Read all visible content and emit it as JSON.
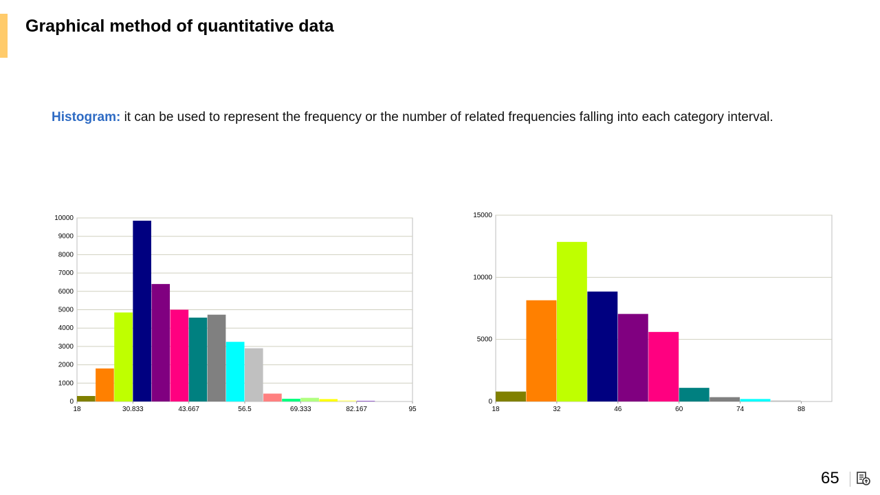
{
  "slide": {
    "title": "Graphical method of quantitative data",
    "term": "Histogram:",
    "description": " it can be used to represent the frequency or the number of related frequencies falling into each category interval.",
    "page_number": "65",
    "accent_color": "#FFCB6B",
    "term_color": "#2E6BC4",
    "footer_icon": "notes-icon"
  },
  "chart_data": [
    {
      "type": "bar",
      "title": "",
      "xlabel": "",
      "ylabel": "",
      "x_ticks": [
        "18",
        "30.833",
        "43.667",
        "56.5",
        "69.333",
        "82.167",
        "95"
      ],
      "y_ticks": [
        "0",
        "1000",
        "2000",
        "3000",
        "4000",
        "5000",
        "6000",
        "7000",
        "8000",
        "9000",
        "10000"
      ],
      "ylim": [
        0,
        10000
      ],
      "xlim": [
        18,
        95
      ],
      "bin_start": 18,
      "bin_width": 4.2778,
      "values": [
        300,
        1800,
        4850,
        9850,
        6400,
        5000,
        4570,
        4730,
        3250,
        2900,
        430,
        150,
        200,
        130,
        60,
        40,
        0,
        0
      ],
      "colors": [
        "#808000",
        "#FF8000",
        "#BFFF00",
        "#000080",
        "#800080",
        "#FF0080",
        "#008080",
        "#808080",
        "#00FFFF",
        "#C0C0C0",
        "#FF8080",
        "#00FF80",
        "#B0FF80",
        "#FFFF00",
        "#FFFF80",
        "#9966CC",
        "#CCCCCC",
        "#CCCCCC"
      ],
      "grid": true
    },
    {
      "type": "bar",
      "title": "",
      "xlabel": "",
      "ylabel": "",
      "x_ticks": [
        "18",
        "32",
        "46",
        "60",
        "74",
        "88"
      ],
      "y_ticks": [
        "0",
        "5000",
        "10000",
        "15000"
      ],
      "ylim": [
        0,
        15000
      ],
      "xlim": [
        18,
        95
      ],
      "bin_start": 18,
      "bin_width": 7,
      "values": [
        800,
        8150,
        12850,
        8850,
        7050,
        5600,
        1100,
        350,
        200,
        80,
        0
      ],
      "colors": [
        "#808000",
        "#FF8000",
        "#BFFF00",
        "#000080",
        "#800080",
        "#FF0080",
        "#008080",
        "#808080",
        "#00FFFF",
        "#C0C0C0",
        "#CCCCCC"
      ],
      "grid": true
    }
  ]
}
